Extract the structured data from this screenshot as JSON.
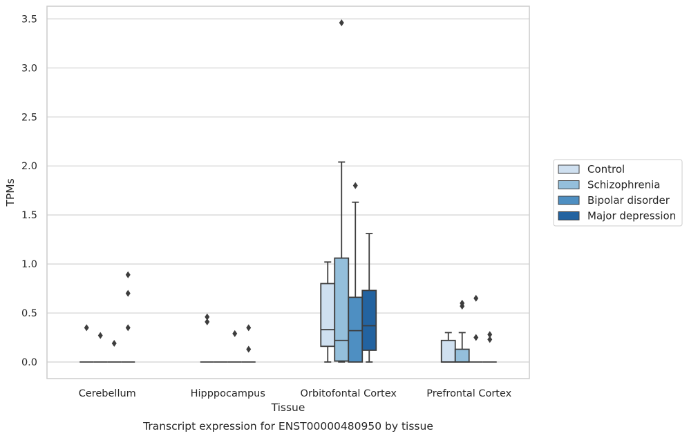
{
  "chart_data": {
    "type": "box",
    "title": "Transcript expression for ENST00000480950 by tissue",
    "xlabel": "Tissue",
    "ylabel": "TPMs",
    "ylim": [
      -0.17,
      3.64
    ],
    "yticks": [
      0.0,
      0.5,
      1.0,
      1.5,
      2.0,
      2.5,
      3.0,
      3.5
    ],
    "ytick_labels": [
      "0.0",
      "0.5",
      "1.0",
      "1.5",
      "2.0",
      "2.5",
      "3.0",
      "3.5"
    ],
    "grid": true,
    "legend_position": "right",
    "categories": [
      "Cerebellum",
      "Hipppocampus",
      "Orbitofontal Cortex",
      "Prefrontal Cortex"
    ],
    "series": [
      {
        "name": "Control",
        "color": "#cfe0f0",
        "boxes": [
          {
            "q1": 0,
            "median": 0,
            "q3": 0,
            "whislo": 0,
            "whishi": 0,
            "fliers": [
              0.35
            ]
          },
          {
            "q1": 0,
            "median": 0,
            "q3": 0,
            "whislo": 0,
            "whishi": 0,
            "fliers": [
              0.41,
              0.46
            ]
          },
          {
            "q1": 0.16,
            "median": 0.33,
            "q3": 0.8,
            "whislo": 0,
            "whishi": 1.02,
            "fliers": []
          },
          {
            "q1": 0,
            "median": 0,
            "q3": 0.22,
            "whislo": 0,
            "whishi": 0.3,
            "fliers": []
          }
        ]
      },
      {
        "name": "Schizophrenia",
        "color": "#94bfdb",
        "boxes": [
          {
            "q1": 0,
            "median": 0,
            "q3": 0,
            "whislo": 0,
            "whishi": 0,
            "fliers": [
              0.27
            ]
          },
          {
            "q1": 0,
            "median": 0,
            "q3": 0,
            "whislo": 0,
            "whishi": 0,
            "fliers": []
          },
          {
            "q1": 0.01,
            "median": 0.22,
            "q3": 1.06,
            "whislo": 0,
            "whishi": 2.04,
            "fliers": [
              3.46
            ]
          },
          {
            "q1": 0,
            "median": 0,
            "q3": 0.13,
            "whislo": 0,
            "whishi": 0.3,
            "fliers": [
              0.57,
              0.6
            ]
          }
        ]
      },
      {
        "name": "Bipolar disorder",
        "color": "#4e8fc2",
        "boxes": [
          {
            "q1": 0,
            "median": 0,
            "q3": 0,
            "whislo": 0,
            "whishi": 0,
            "fliers": [
              0.19
            ]
          },
          {
            "q1": 0,
            "median": 0,
            "q3": 0,
            "whislo": 0,
            "whishi": 0,
            "fliers": [
              0.29
            ]
          },
          {
            "q1": 0,
            "median": 0.32,
            "q3": 0.66,
            "whislo": 0,
            "whishi": 1.63,
            "fliers": [
              1.8
            ]
          },
          {
            "q1": 0,
            "median": 0,
            "q3": 0,
            "whislo": 0,
            "whishi": 0,
            "fliers": [
              0.65,
              0.25
            ]
          }
        ]
      },
      {
        "name": "Major depression",
        "color": "#2363a0",
        "boxes": [
          {
            "q1": 0,
            "median": 0,
            "q3": 0,
            "whislo": 0,
            "whishi": 0,
            "fliers": [
              0.35,
              0.7,
              0.89
            ]
          },
          {
            "q1": 0,
            "median": 0,
            "q3": 0,
            "whislo": 0,
            "whishi": 0,
            "fliers": [
              0.13,
              0.35
            ]
          },
          {
            "q1": 0.12,
            "median": 0.37,
            "q3": 0.73,
            "whislo": 0,
            "whishi": 1.31,
            "fliers": []
          },
          {
            "q1": 0,
            "median": 0,
            "q3": 0,
            "whislo": 0,
            "whishi": 0,
            "fliers": [
              0.23,
              0.28
            ]
          }
        ]
      }
    ]
  }
}
